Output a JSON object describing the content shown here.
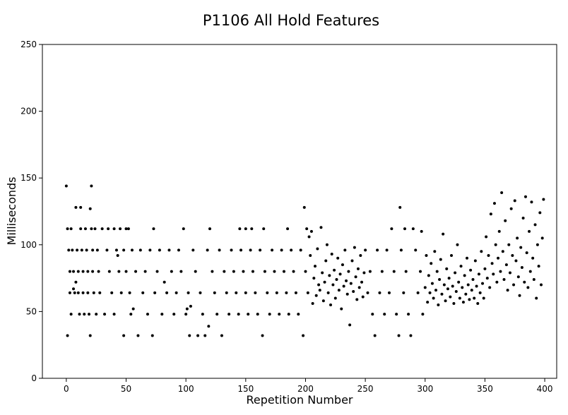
{
  "chart_data": {
    "type": "scatter",
    "title": "P1106 All Hold Features",
    "xlabel": "Repetition Number",
    "ylabel": "Milliseconds",
    "xlim": [
      -20,
      410
    ],
    "ylim": [
      0,
      250
    ],
    "xticks": [
      0,
      50,
      100,
      150,
      200,
      250,
      300,
      350,
      400
    ],
    "yticks": [
      0,
      50,
      100,
      150,
      200,
      250
    ],
    "grid": false,
    "legend": "none",
    "marker_color": "#000000",
    "series": [
      {
        "name": "",
        "points": [
          [
            0,
            144
          ],
          [
            1,
            32
          ],
          [
            1,
            112
          ],
          [
            2,
            96
          ],
          [
            3,
            80
          ],
          [
            3,
            64
          ],
          [
            4,
            112
          ],
          [
            4,
            48
          ],
          [
            5,
            96
          ],
          [
            6,
            80
          ],
          [
            6,
            67
          ],
          [
            7,
            64
          ],
          [
            8,
            128
          ],
          [
            8,
            72
          ],
          [
            9,
            96
          ],
          [
            10,
            80
          ],
          [
            10,
            64
          ],
          [
            11,
            48
          ],
          [
            12,
            128
          ],
          [
            12,
            112
          ],
          [
            13,
            96
          ],
          [
            14,
            80
          ],
          [
            14,
            64
          ],
          [
            15,
            48
          ],
          [
            16,
            112
          ],
          [
            17,
            96
          ],
          [
            18,
            80
          ],
          [
            18,
            64
          ],
          [
            19,
            48
          ],
          [
            20,
            32
          ],
          [
            20,
            127
          ],
          [
            21,
            144
          ],
          [
            21,
            112
          ],
          [
            22,
            96
          ],
          [
            22,
            80
          ],
          [
            23,
            64
          ],
          [
            24,
            112
          ],
          [
            25,
            48
          ],
          [
            26,
            96
          ],
          [
            27,
            80
          ],
          [
            28,
            64
          ],
          [
            30,
            112
          ],
          [
            32,
            48
          ],
          [
            34,
            96
          ],
          [
            35,
            112
          ],
          [
            36,
            80
          ],
          [
            38,
            64
          ],
          [
            40,
            48
          ],
          [
            40,
            112
          ],
          [
            42,
            96
          ],
          [
            43,
            92
          ],
          [
            44,
            80
          ],
          [
            45,
            112
          ],
          [
            46,
            64
          ],
          [
            48,
            32
          ],
          [
            48,
            96
          ],
          [
            50,
            80
          ],
          [
            50,
            112
          ],
          [
            52,
            112
          ],
          [
            53,
            64
          ],
          [
            54,
            48
          ],
          [
            55,
            96
          ],
          [
            56,
            52
          ],
          [
            58,
            80
          ],
          [
            60,
            32
          ],
          [
            62,
            96
          ],
          [
            64,
            64
          ],
          [
            66,
            80
          ],
          [
            68,
            48
          ],
          [
            70,
            96
          ],
          [
            72,
            32
          ],
          [
            73,
            112
          ],
          [
            74,
            64
          ],
          [
            76,
            80
          ],
          [
            78,
            96
          ],
          [
            80,
            48
          ],
          [
            82,
            72
          ],
          [
            84,
            64
          ],
          [
            86,
            96
          ],
          [
            88,
            80
          ],
          [
            90,
            48
          ],
          [
            92,
            64
          ],
          [
            94,
            96
          ],
          [
            96,
            80
          ],
          [
            98,
            112
          ],
          [
            100,
            48
          ],
          [
            101,
            52
          ],
          [
            102,
            64
          ],
          [
            103,
            32
          ],
          [
            104,
            54
          ],
          [
            106,
            96
          ],
          [
            108,
            80
          ],
          [
            110,
            32
          ],
          [
            112,
            64
          ],
          [
            114,
            48
          ],
          [
            116,
            32
          ],
          [
            118,
            96
          ],
          [
            119,
            39
          ],
          [
            120,
            112
          ],
          [
            122,
            80
          ],
          [
            124,
            64
          ],
          [
            126,
            48
          ],
          [
            128,
            96
          ],
          [
            130,
            32
          ],
          [
            132,
            80
          ],
          [
            134,
            64
          ],
          [
            136,
            48
          ],
          [
            138,
            96
          ],
          [
            140,
            80
          ],
          [
            142,
            64
          ],
          [
            144,
            48
          ],
          [
            145,
            112
          ],
          [
            146,
            96
          ],
          [
            148,
            80
          ],
          [
            150,
            64
          ],
          [
            150,
            112
          ],
          [
            152,
            48
          ],
          [
            154,
            96
          ],
          [
            155,
            112
          ],
          [
            156,
            80
          ],
          [
            158,
            64
          ],
          [
            160,
            48
          ],
          [
            162,
            96
          ],
          [
            164,
            32
          ],
          [
            165,
            112
          ],
          [
            166,
            80
          ],
          [
            168,
            64
          ],
          [
            170,
            48
          ],
          [
            172,
            96
          ],
          [
            174,
            80
          ],
          [
            176,
            64
          ],
          [
            178,
            48
          ],
          [
            180,
            96
          ],
          [
            182,
            80
          ],
          [
            184,
            64
          ],
          [
            185,
            112
          ],
          [
            186,
            48
          ],
          [
            188,
            96
          ],
          [
            190,
            80
          ],
          [
            192,
            64
          ],
          [
            194,
            48
          ],
          [
            196,
            96
          ],
          [
            198,
            32
          ],
          [
            199,
            128
          ],
          [
            200,
            80
          ],
          [
            201,
            112
          ],
          [
            202,
            64
          ],
          [
            203,
            106
          ],
          [
            204,
            92
          ],
          [
            205,
            110
          ],
          [
            206,
            56
          ],
          [
            207,
            75
          ],
          [
            208,
            84
          ],
          [
            209,
            62
          ],
          [
            210,
            97
          ],
          [
            211,
            70
          ],
          [
            212,
            66
          ],
          [
            213,
            113
          ],
          [
            214,
            79
          ],
          [
            215,
            58
          ],
          [
            216,
            72
          ],
          [
            217,
            88
          ],
          [
            218,
            100
          ],
          [
            219,
            64
          ],
          [
            220,
            77
          ],
          [
            221,
            55
          ],
          [
            222,
            93
          ],
          [
            223,
            70
          ],
          [
            224,
            81
          ],
          [
            225,
            60
          ],
          [
            226,
            74
          ],
          [
            227,
            90
          ],
          [
            228,
            66
          ],
          [
            229,
            78
          ],
          [
            230,
            52
          ],
          [
            231,
            85
          ],
          [
            232,
            69
          ],
          [
            233,
            96
          ],
          [
            234,
            73
          ],
          [
            235,
            63
          ],
          [
            236,
            80
          ],
          [
            237,
            40
          ],
          [
            238,
            71
          ],
          [
            239,
            88
          ],
          [
            240,
            65
          ],
          [
            241,
            98
          ],
          [
            242,
            76
          ],
          [
            243,
            59
          ],
          [
            244,
            82
          ],
          [
            245,
            68
          ],
          [
            246,
            92
          ],
          [
            247,
            72
          ],
          [
            248,
            61
          ],
          [
            249,
            79
          ],
          [
            250,
            96
          ],
          [
            252,
            64
          ],
          [
            254,
            80
          ],
          [
            256,
            48
          ],
          [
            258,
            32
          ],
          [
            260,
            96
          ],
          [
            262,
            64
          ],
          [
            264,
            80
          ],
          [
            266,
            48
          ],
          [
            268,
            96
          ],
          [
            270,
            64
          ],
          [
            272,
            112
          ],
          [
            274,
            80
          ],
          [
            276,
            48
          ],
          [
            278,
            32
          ],
          [
            279,
            128
          ],
          [
            280,
            96
          ],
          [
            282,
            64
          ],
          [
            283,
            112
          ],
          [
            284,
            80
          ],
          [
            286,
            48
          ],
          [
            288,
            32
          ],
          [
            290,
            112
          ],
          [
            292,
            96
          ],
          [
            294,
            64
          ],
          [
            296,
            80
          ],
          [
            297,
            110
          ],
          [
            298,
            48
          ],
          [
            300,
            68
          ],
          [
            301,
            92
          ],
          [
            302,
            57
          ],
          [
            303,
            77
          ],
          [
            304,
            64
          ],
          [
            305,
            86
          ],
          [
            306,
            71
          ],
          [
            307,
            60
          ],
          [
            308,
            95
          ],
          [
            309,
            66
          ],
          [
            310,
            80
          ],
          [
            311,
            55
          ],
          [
            312,
            74
          ],
          [
            313,
            89
          ],
          [
            314,
            63
          ],
          [
            315,
            108
          ],
          [
            316,
            70
          ],
          [
            317,
            58
          ],
          [
            318,
            82
          ],
          [
            319,
            67
          ],
          [
            320,
            75
          ],
          [
            321,
            61
          ],
          [
            322,
            92
          ],
          [
            323,
            69
          ],
          [
            324,
            56
          ],
          [
            325,
            79
          ],
          [
            326,
            65
          ],
          [
            327,
            100
          ],
          [
            328,
            72
          ],
          [
            329,
            60
          ],
          [
            330,
            84
          ],
          [
            331,
            68
          ],
          [
            332,
            57
          ],
          [
            333,
            77
          ],
          [
            334,
            63
          ],
          [
            335,
            90
          ],
          [
            336,
            70
          ],
          [
            337,
            59
          ],
          [
            338,
            81
          ],
          [
            339,
            66
          ],
          [
            340,
            74
          ],
          [
            341,
            60
          ],
          [
            342,
            88
          ],
          [
            343,
            69
          ],
          [
            344,
            56
          ],
          [
            345,
            78
          ],
          [
            346,
            64
          ],
          [
            347,
            95
          ],
          [
            348,
            71
          ],
          [
            349,
            60
          ],
          [
            350,
            82
          ],
          [
            351,
            106
          ],
          [
            352,
            75
          ],
          [
            353,
            92
          ],
          [
            354,
            68
          ],
          [
            355,
            123
          ],
          [
            356,
            86
          ],
          [
            357,
            78
          ],
          [
            358,
            131
          ],
          [
            359,
            100
          ],
          [
            360,
            72
          ],
          [
            361,
            90
          ],
          [
            362,
            110
          ],
          [
            363,
            80
          ],
          [
            364,
            139
          ],
          [
            365,
            95
          ],
          [
            366,
            74
          ],
          [
            367,
            118
          ],
          [
            368,
            85
          ],
          [
            369,
            66
          ],
          [
            370,
            100
          ],
          [
            371,
            79
          ],
          [
            372,
            127
          ],
          [
            373,
            92
          ],
          [
            374,
            70
          ],
          [
            375,
            133
          ],
          [
            376,
            88
          ],
          [
            377,
            105
          ],
          [
            378,
            76
          ],
          [
            379,
            62
          ],
          [
            380,
            98
          ],
          [
            381,
            83
          ],
          [
            382,
            120
          ],
          [
            383,
            72
          ],
          [
            384,
            136
          ],
          [
            385,
            94
          ],
          [
            386,
            68
          ],
          [
            387,
            110
          ],
          [
            388,
            80
          ],
          [
            389,
            132
          ],
          [
            390,
            90
          ],
          [
            391,
            74
          ],
          [
            392,
            115
          ],
          [
            393,
            60
          ],
          [
            394,
            100
          ],
          [
            395,
            84
          ],
          [
            396,
            124
          ],
          [
            397,
            70
          ],
          [
            398,
            105
          ],
          [
            399,
            134
          ]
        ]
      }
    ]
  }
}
